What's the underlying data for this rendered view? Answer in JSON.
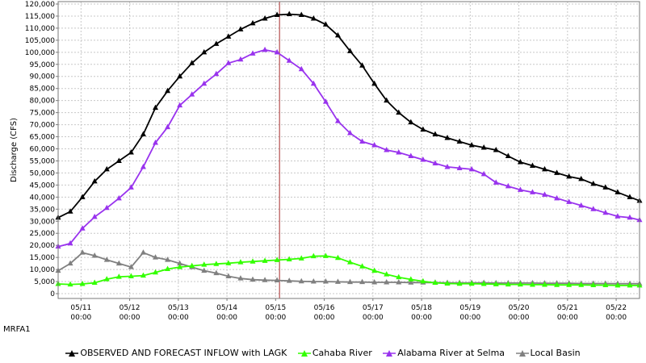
{
  "chart_data": {
    "type": "line",
    "ylabel": "Discharge (CFS)",
    "ylim": [
      -2000,
      121000
    ],
    "yticks": [
      0,
      5000,
      10000,
      15000,
      20000,
      25000,
      30000,
      35000,
      40000,
      45000,
      50000,
      55000,
      60000,
      65000,
      70000,
      75000,
      80000,
      85000,
      90000,
      95000,
      100000,
      105000,
      110000,
      115000,
      120000
    ],
    "ytick_labels": [
      "0",
      "5,000",
      "10,000",
      "15,000",
      "20,000",
      "25,000",
      "30,000",
      "35,000",
      "40,000",
      "45,000",
      "50,000",
      "55,000",
      "60,000",
      "65,000",
      "70,000",
      "75,000",
      "80,000",
      "85,000",
      "90,000",
      "95,000",
      "100,000",
      "105,000",
      "110,000",
      "115,000",
      "120,000"
    ],
    "xlim": [
      10.53,
      22.48
    ],
    "xticks": [
      11,
      12,
      13,
      14,
      15,
      16,
      17,
      18,
      19,
      20,
      21,
      22
    ],
    "xtick_labels": [
      [
        "05/11",
        "00:00"
      ],
      [
        "05/12",
        "00:00"
      ],
      [
        "05/13",
        "00:00"
      ],
      [
        "05/14",
        "00:00"
      ],
      [
        "05/15",
        "00:00"
      ],
      [
        "05/16",
        "00:00"
      ],
      [
        "05/17",
        "00:00"
      ],
      [
        "05/18",
        "00:00"
      ],
      [
        "05/19",
        "00:00"
      ],
      [
        "05/20",
        "00:00"
      ],
      [
        "05/21",
        "00:00"
      ],
      [
        "05/22",
        "00:00"
      ]
    ],
    "grid": true,
    "current_time": 15.08,
    "current_time_color": "#a52a2a",
    "x": [
      10.53,
      10.78,
      11.03,
      11.28,
      11.53,
      11.78,
      12.03,
      12.28,
      12.53,
      12.78,
      13.03,
      13.28,
      13.53,
      13.78,
      14.03,
      14.28,
      14.53,
      14.78,
      15.03,
      15.28,
      15.53,
      15.78,
      16.03,
      16.28,
      16.53,
      16.78,
      17.03,
      17.28,
      17.53,
      17.78,
      18.03,
      18.28,
      18.53,
      18.78,
      19.03,
      19.28,
      19.53,
      19.78,
      20.03,
      20.28,
      20.53,
      20.78,
      21.03,
      21.28,
      21.53,
      21.78,
      22.03,
      22.28,
      22.48
    ],
    "series": [
      {
        "name": "OBSERVED AND FORECAST INFLOW with LAGK",
        "color": "#000000",
        "values": [
          31500,
          34000,
          40000,
          46500,
          51500,
          55000,
          58500,
          66000,
          77000,
          84000,
          90000,
          95500,
          100000,
          103500,
          106500,
          109500,
          112000,
          114000,
          115500,
          115800,
          115500,
          114000,
          111500,
          107000,
          100500,
          94500,
          87000,
          80000,
          75000,
          71000,
          68000,
          66000,
          64500,
          63000,
          61500,
          60500,
          59500,
          57000,
          54500,
          53000,
          51500,
          50000,
          48500,
          47500,
          45500,
          44000,
          42000,
          40000,
          38500
        ]
      },
      {
        "name": "Cahaba River",
        "color": "#33ff00",
        "values": [
          4000,
          3800,
          4000,
          4500,
          6000,
          7000,
          7200,
          7500,
          8800,
          10200,
          11000,
          11500,
          12000,
          12300,
          12600,
          13000,
          13300,
          13600,
          13900,
          14200,
          14600,
          15500,
          15600,
          14800,
          13000,
          11300,
          9500,
          8000,
          6800,
          5900,
          5100,
          4500,
          4200,
          4100,
          4100,
          4000,
          3900,
          3800,
          3800,
          3700,
          3700,
          3600,
          3600,
          3600,
          3500,
          3500,
          3400,
          3400,
          3400
        ]
      },
      {
        "name": "Alabama River at Selma",
        "color": "#9933ee",
        "values": [
          19500,
          20800,
          27000,
          31800,
          35500,
          39500,
          44000,
          52500,
          62500,
          69000,
          78000,
          82500,
          87000,
          91000,
          95500,
          97000,
          99500,
          101000,
          100000,
          96500,
          93000,
          87000,
          79500,
          71500,
          66500,
          63000,
          61500,
          59500,
          58500,
          57000,
          55500,
          54000,
          52500,
          52000,
          51500,
          49500,
          46000,
          44500,
          43000,
          42000,
          41000,
          39500,
          38000,
          36500,
          35000,
          33500,
          32000,
          31500,
          30500
        ]
      },
      {
        "name": "Local Basin",
        "color": "#808080",
        "values": [
          9500,
          12500,
          17000,
          15700,
          14000,
          12500,
          11000,
          17000,
          15000,
          14000,
          12500,
          11000,
          9500,
          8500,
          7200,
          6300,
          5800,
          5600,
          5500,
          5300,
          5100,
          5000,
          5000,
          4900,
          4800,
          4800,
          4700,
          4700,
          4700,
          4600,
          4600,
          4600,
          4500,
          4500,
          4500,
          4500,
          4400,
          4400,
          4400,
          4400,
          4300,
          4300,
          4300,
          4200,
          4200,
          4200,
          4100,
          4100,
          4100
        ]
      }
    ]
  },
  "footer_text": "MRFA1",
  "legend": [
    {
      "label": "OBSERVED AND FORECAST INFLOW with LAGK",
      "color": "#000000"
    },
    {
      "label": "Cahaba River",
      "color": "#33ff00"
    },
    {
      "label": "Alabama River at Selma",
      "color": "#9933ee"
    },
    {
      "label": "Local Basin",
      "color": "#808080"
    }
  ]
}
